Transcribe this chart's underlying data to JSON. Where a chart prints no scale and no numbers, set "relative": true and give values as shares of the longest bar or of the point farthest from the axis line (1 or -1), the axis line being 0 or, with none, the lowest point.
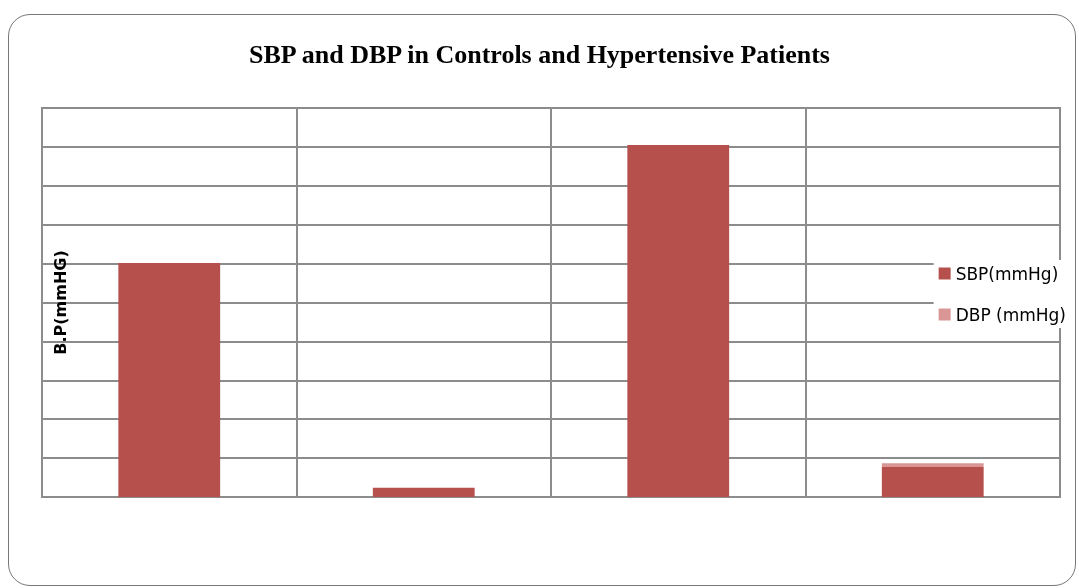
{
  "chart_data": {
    "type": "bar",
    "title": "SBP and DBP in Controls and Hypertensive Patients",
    "ylabel": "B.P(mmHG)",
    "categories": [
      null,
      null,
      null,
      null
    ],
    "stacked": true,
    "relative": true,
    "grid": true,
    "legend": "right",
    "series": [
      {
        "name": "SBP(mmHg)",
        "color": "#b5504d",
        "values": [
          0.665,
          0.026,
          1,
          0.085
        ]
      },
      {
        "name": "DBP (mmHg)",
        "color": "#d99694",
        "values": [
          0,
          0,
          0,
          0.011
        ]
      }
    ]
  }
}
